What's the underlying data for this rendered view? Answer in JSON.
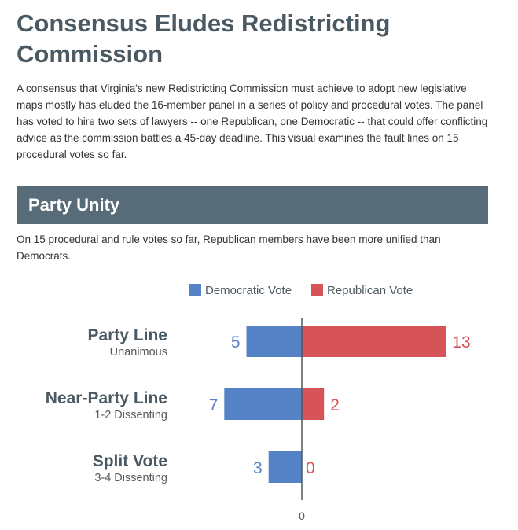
{
  "header": {
    "title": "Consensus Eludes Redistricting Commission",
    "intro": "A consensus that Virginia's new Redistricting Commission must achieve to adopt new legislative maps mostly has eluded the 16-member panel in a series of policy and procedural votes. The panel has voted to hire two sets of lawyers -- one Republican, one Democratic -- that could offer conflicting advice as the commission battles a 45-day deadline. This visual examines the fault lines on 15 procedural votes so far."
  },
  "section": {
    "title": "Party Unity",
    "description": "On 15 procedural and rule votes so far, Republican members have been more unified than Democrats."
  },
  "colors": {
    "democratic": "#5683c7",
    "republican": "#d65457",
    "banner": "#586b79",
    "axis": "#4b5962"
  },
  "chart_data": {
    "type": "bar",
    "orientation": "horizontal-diverging",
    "categories": [
      {
        "label": "Party Line",
        "sublabel": "Unanimous"
      },
      {
        "label": "Near-Party Line",
        "sublabel": "1-2 Dissenting"
      },
      {
        "label": "Split Vote",
        "sublabel": "3-4 Dissenting"
      }
    ],
    "series": [
      {
        "name": "Democratic Vote",
        "direction": "left",
        "color": "#5683c7",
        "values": [
          5,
          7,
          3
        ]
      },
      {
        "name": "Republican Vote",
        "direction": "right",
        "color": "#d65457",
        "values": [
          13,
          2,
          0
        ]
      }
    ],
    "axis_zero_label": "0",
    "legend_position": "top",
    "grid": false
  }
}
